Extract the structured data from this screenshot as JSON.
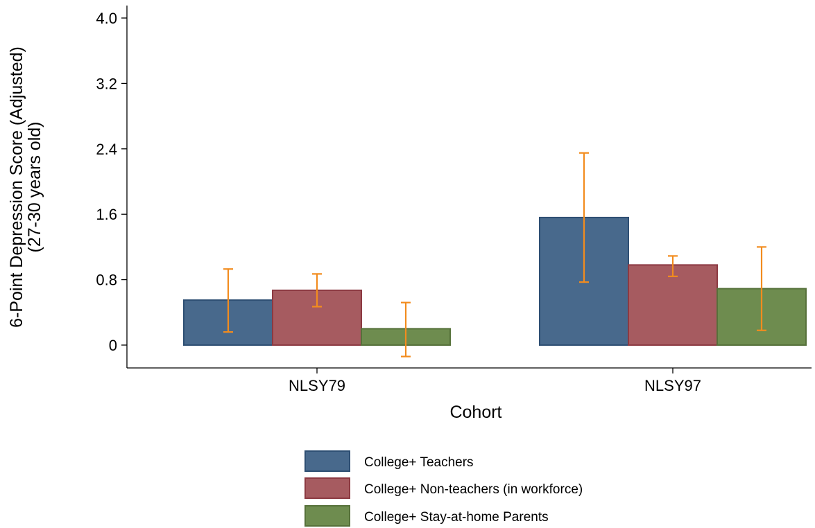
{
  "chart_data": {
    "type": "bar",
    "title": "",
    "xlabel": "Cohort",
    "ylabel_line1": "6-Point Depression Score (Adjusted)",
    "ylabel_line2": "(27-30 years old)",
    "categories": [
      "NLSY79",
      "NLSY97"
    ],
    "ylim": [
      0,
      4.0
    ],
    "yticks": [
      0,
      0.8,
      1.6,
      2.4,
      3.2,
      4.0
    ],
    "ytick_labels": [
      "0",
      "0.8",
      "1.6",
      "2.4",
      "3.2",
      "4.0"
    ],
    "grid": false,
    "legend_position": "bottom",
    "series": [
      {
        "name": "College+ Teachers",
        "color": "#48698c",
        "border": "#2e4f73",
        "values": [
          0.55,
          1.56
        ],
        "ci_low": [
          0.16,
          0.77
        ],
        "ci_high": [
          0.93,
          2.35
        ]
      },
      {
        "name": "College+ Non-teachers (in workforce)",
        "color": "#a65b60",
        "border": "#8c3a42",
        "values": [
          0.67,
          0.98
        ],
        "ci_low": [
          0.47,
          0.84
        ],
        "ci_high": [
          0.87,
          1.09
        ]
      },
      {
        "name": "College+ Stay-at-home Parents",
        "color": "#6e8c4f",
        "border": "#56713a",
        "values": [
          0.2,
          0.69
        ],
        "ci_low": [
          -0.14,
          0.18
        ],
        "ci_high": [
          0.52,
          1.2
        ]
      }
    ],
    "errorbar_color": "#f28c1e"
  }
}
